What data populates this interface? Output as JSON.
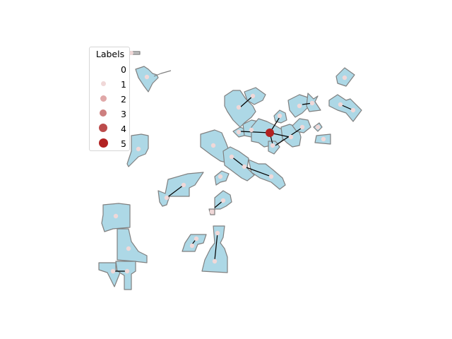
{
  "legend": {
    "title": "Labels",
    "entries": [
      {
        "label": "0",
        "color": "#ffffff"
      },
      {
        "label": "1",
        "color": "#f0d8d8"
      },
      {
        "label": "2",
        "color": "#e0a8a8"
      },
      {
        "label": "3",
        "color": "#cd7f7f"
      },
      {
        "label": "4",
        "color": "#bc4c4c"
      },
      {
        "label": "5",
        "color": "#b22222"
      }
    ]
  },
  "colors": {
    "polygon_fill": "#add8e6",
    "polygon_stroke": "#808080",
    "edge": "#000000",
    "highlight_node": "#b22222"
  }
}
